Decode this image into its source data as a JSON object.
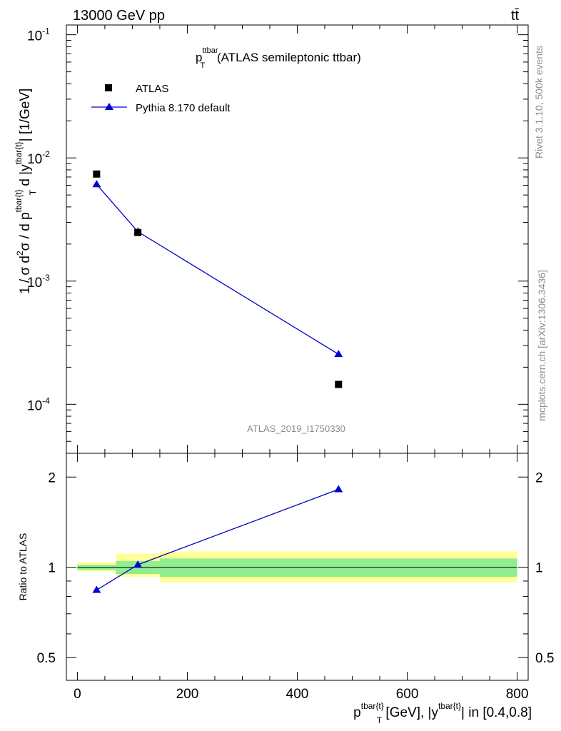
{
  "header": {
    "left": "13000 GeV pp",
    "right": "tt̄"
  },
  "title": {
    "main": "p",
    "sup": "ttbar",
    "sub": "T",
    "rest": " (ATLAS semileptonic ttbar)"
  },
  "side_labels": {
    "rivet": "Rivet 3.1.10,  500k events",
    "mcplots": "mcplots.cern.ch [arXiv:1306.3436]"
  },
  "watermark": "ATLAS_2019_I1750330",
  "y_axis_label": {
    "t1": "1 / σ d",
    "s1": "2",
    "t2": "σ / d p",
    "s2": "tbar{t",
    "s3": "}",
    "b3": "T",
    "t3": " d |y",
    "s4": "tbar{t",
    "s5": "}",
    "t4": "| [1/GeV]"
  },
  "ratio_y_label": "Ratio to ATLAS",
  "x_axis_label": {
    "t1": "p",
    "s1": "tbar{t",
    "s2": "}",
    "b2": "T",
    "t2": " [GeV], |y",
    "s3": "tbar{t",
    "s4": "}",
    "t3": "| in [0.4,0.8]"
  },
  "main_y_ticks": [
    {
      "base": "10",
      "exp": "-4",
      "value": 0.0001
    },
    {
      "base": "10",
      "exp": "-3",
      "value": 0.001
    },
    {
      "base": "10",
      "exp": "-2",
      "value": 0.01
    },
    {
      "base": "10",
      "exp": "-1",
      "value": 0.1
    }
  ],
  "ratio_y_ticks": [
    {
      "label": "0.5",
      "value": 0.5
    },
    {
      "label": "1",
      "value": 1
    },
    {
      "label": "2",
      "value": 2
    }
  ],
  "x_ticks": [
    {
      "label": "0",
      "value": 0
    },
    {
      "label": "200",
      "value": 200
    },
    {
      "label": "400",
      "value": 400
    },
    {
      "label": "600",
      "value": 600
    },
    {
      "label": "800",
      "value": 800
    }
  ],
  "colors": {
    "data": "#000000",
    "mc": "#0000cc",
    "band_inner": "#90ee90",
    "band_outer": "#ffff99"
  },
  "chart_data": {
    "type": "scatter",
    "xlim": [
      -20,
      820
    ],
    "main_ylim": [
      4e-05,
      0.12
    ],
    "main_yscale": "log",
    "ratio_ylim": [
      0.42,
      2.4
    ],
    "ratio_yscale": "log",
    "legend_position": "top-left",
    "series": [
      {
        "name": "ATLAS",
        "marker": "square",
        "x": [
          35,
          110,
          475
        ],
        "y": [
          0.0074,
          0.00248,
          0.000145
        ],
        "bins": [
          [
            0,
            70
          ],
          [
            70,
            150
          ],
          [
            150,
            800
          ]
        ]
      },
      {
        "name": "Pythia 8.170 default",
        "marker": "triangle",
        "x": [
          35,
          110,
          475
        ],
        "y": [
          0.0061,
          0.00252,
          0.000255
        ]
      }
    ],
    "ratio": {
      "mc_values": [
        0.84,
        1.02,
        1.82
      ],
      "band_inner": [
        [
          0.98,
          1.02
        ],
        [
          0.95,
          1.05
        ],
        [
          0.93,
          1.07
        ]
      ],
      "band_outer": [
        [
          0.97,
          1.04
        ],
        [
          0.93,
          1.11
        ],
        [
          0.89,
          1.13
        ]
      ]
    }
  }
}
